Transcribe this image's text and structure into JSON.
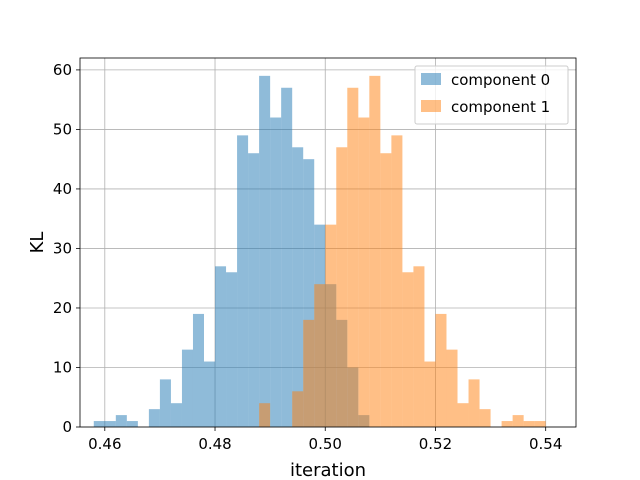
{
  "chart_data": {
    "type": "bar",
    "xlabel": "iteration",
    "ylabel": "KL",
    "xlim": [
      0.4555,
      0.5455
    ],
    "ylim": [
      0,
      62
    ],
    "bin_width": 0.002,
    "grid": true,
    "legend_position": "top-right",
    "x_ticks": [
      {
        "value": 0.46,
        "label": "0.46"
      },
      {
        "value": 0.48,
        "label": "0.48"
      },
      {
        "value": 0.5,
        "label": "0.50"
      },
      {
        "value": 0.52,
        "label": "0.52"
      },
      {
        "value": 0.54,
        "label": "0.54"
      }
    ],
    "y_ticks": [
      {
        "value": 0,
        "label": "0"
      },
      {
        "value": 10,
        "label": "10"
      },
      {
        "value": 20,
        "label": "20"
      },
      {
        "value": 30,
        "label": "30"
      },
      {
        "value": 40,
        "label": "40"
      },
      {
        "value": 50,
        "label": "50"
      },
      {
        "value": 60,
        "label": "60"
      }
    ],
    "series": [
      {
        "name": "component 0",
        "color": "#1f77b4",
        "bins": [
          [
            0.458,
            1
          ],
          [
            0.46,
            1
          ],
          [
            0.462,
            2
          ],
          [
            0.464,
            1
          ],
          [
            0.468,
            3
          ],
          [
            0.47,
            8
          ],
          [
            0.472,
            4
          ],
          [
            0.474,
            13
          ],
          [
            0.476,
            19
          ],
          [
            0.478,
            11
          ],
          [
            0.48,
            27
          ],
          [
            0.482,
            26
          ],
          [
            0.484,
            49
          ],
          [
            0.486,
            46
          ],
          [
            0.488,
            59
          ],
          [
            0.49,
            52
          ],
          [
            0.492,
            57
          ],
          [
            0.494,
            47
          ],
          [
            0.496,
            45
          ],
          [
            0.498,
            34
          ],
          [
            0.5,
            24
          ],
          [
            0.502,
            18
          ],
          [
            0.504,
            10
          ],
          [
            0.506,
            2
          ]
        ]
      },
      {
        "name": "component 1",
        "color": "#ff7f0e",
        "bins": [
          [
            0.488,
            4
          ],
          [
            0.494,
            6
          ],
          [
            0.496,
            18
          ],
          [
            0.498,
            24
          ],
          [
            0.5,
            34
          ],
          [
            0.502,
            47
          ],
          [
            0.504,
            57
          ],
          [
            0.506,
            52
          ],
          [
            0.508,
            59
          ],
          [
            0.51,
            46
          ],
          [
            0.512,
            49
          ],
          [
            0.514,
            26
          ],
          [
            0.516,
            27
          ],
          [
            0.518,
            11
          ],
          [
            0.52,
            19
          ],
          [
            0.522,
            13
          ],
          [
            0.524,
            4
          ],
          [
            0.526,
            8
          ],
          [
            0.528,
            3
          ],
          [
            0.532,
            1
          ],
          [
            0.534,
            2
          ],
          [
            0.536,
            1
          ],
          [
            0.538,
            1
          ]
        ]
      }
    ]
  }
}
